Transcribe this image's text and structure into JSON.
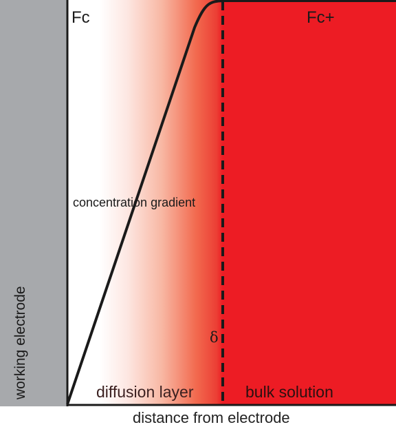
{
  "diagram": {
    "electrode_label": "working electrode",
    "species_left": "Fc",
    "species_right": "Fc+",
    "gradient_label": "concentration gradient",
    "delta_symbol": "δ",
    "diffusion_layer_label": "diffusion layer",
    "bulk_solution_label": "bulk solution",
    "x_axis_label": "distance from electrode"
  },
  "colors": {
    "electrode": "#a7a9ac",
    "bulk_solution": "#ed1c24",
    "line": "#1a1a1a"
  }
}
